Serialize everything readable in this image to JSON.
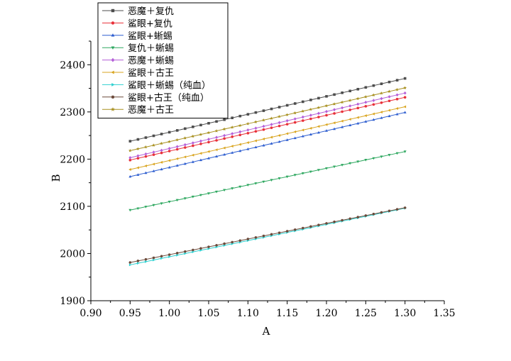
{
  "chart_data": {
    "type": "line",
    "xlabel": "A",
    "ylabel": "B",
    "xlim": [
      0.9,
      1.35
    ],
    "ylim": [
      1900,
      2450
    ],
    "x_ticks": [
      "0.90",
      "0.95",
      "1.00",
      "1.05",
      "1.10",
      "1.15",
      "1.20",
      "1.25",
      "1.30",
      "1.35"
    ],
    "y_ticks": [
      "1900",
      "2000",
      "2100",
      "2200",
      "2300",
      "2400"
    ],
    "x_start": 0.95,
    "x_end": 1.3,
    "legend_position": "top-left",
    "series": [
      {
        "name": "恶魔＋复仇",
        "color": "#4d4d4d",
        "marker": "square",
        "start": 2238,
        "end": 2371
      },
      {
        "name": "鲨眼+复仇",
        "color": "#e8303a",
        "marker": "circle",
        "start": 2198,
        "end": 2331
      },
      {
        "name": "鲨眼+蜥蜴",
        "color": "#2f5fd0",
        "marker": "triangle-up",
        "start": 2163,
        "end": 2299
      },
      {
        "name": "复仇＋蜥蜴",
        "color": "#2fa860",
        "marker": "triangle-down",
        "start": 2092,
        "end": 2216
      },
      {
        "name": "恶魔＋蜥蜴",
        "color": "#b45fd8",
        "marker": "diamond",
        "start": 2203,
        "end": 2340
      },
      {
        "name": "鲨眼＋古王",
        "color": "#d9a520",
        "marker": "triangle-left",
        "start": 2178,
        "end": 2311
      },
      {
        "name": "鲨眼＋蜥蜴（纯血）",
        "color": "#2fd0d0",
        "marker": "triangle-right",
        "start": 1976,
        "end": 2096
      },
      {
        "name": "鲨眼+古王（纯血）",
        "color": "#6b4a3a",
        "marker": "hexagon",
        "start": 1981,
        "end": 2097
      },
      {
        "name": "恶魔＋古王",
        "color": "#a89020",
        "marker": "star",
        "start": 2218,
        "end": 2351
      }
    ]
  }
}
